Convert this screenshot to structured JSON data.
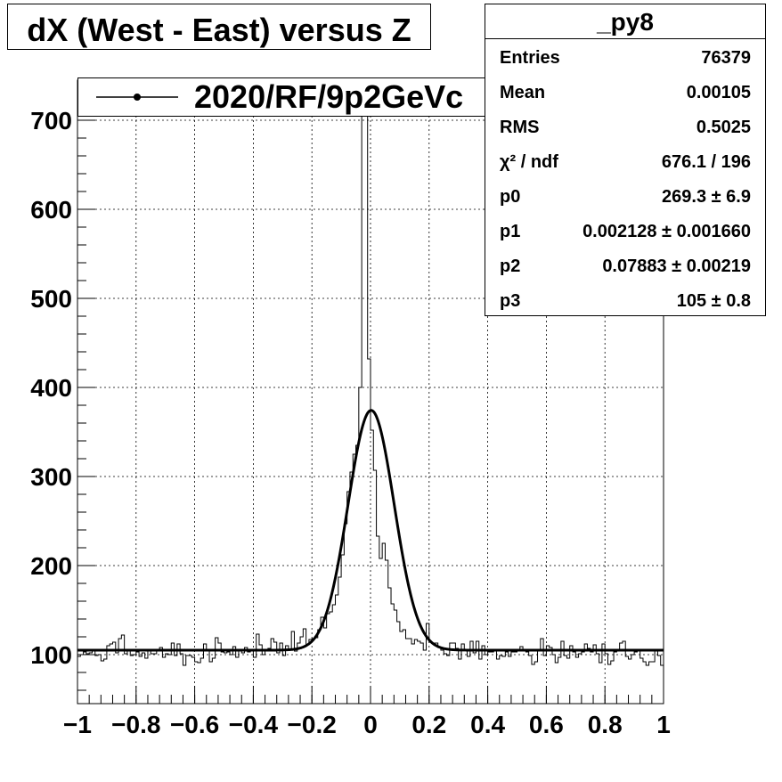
{
  "title": "dX (West - East) versus Z",
  "legend": {
    "entry": "2020/RF/9p2GeVc"
  },
  "stats": {
    "name": "_py8",
    "rows": [
      {
        "key": "Entries",
        "value": "76379"
      },
      {
        "key": "Mean",
        "value": "0.00105"
      },
      {
        "key": "RMS",
        "value": "0.5025"
      },
      {
        "key": "χ² / ndf",
        "value": "676.1 / 196"
      },
      {
        "key": "p0",
        "value": "269.3 ± 6.9"
      },
      {
        "key": "p1",
        "value": "0.002128 ± 0.001660"
      },
      {
        "key": "p2",
        "value": "0.07883 ± 0.00219"
      },
      {
        "key": "p3",
        "value": "105 ± 0.8"
      }
    ]
  },
  "chart_data": {
    "type": "line",
    "title": "dX (West - East) versus Z",
    "xlabel": "",
    "ylabel": "",
    "xlim": [
      -1,
      1
    ],
    "ylim": [
      45,
      745
    ],
    "grid": true,
    "legend_position": "top-left",
    "x_ticks": [
      "−1",
      "−0.8",
      "−0.6",
      "−0.4",
      "−0.2",
      "0",
      "0.2",
      "0.4",
      "0.6",
      "0.8",
      "1"
    ],
    "y_ticks": [
      "100",
      "200",
      "300",
      "400",
      "500",
      "600",
      "700"
    ],
    "series": [
      {
        "name": "2020/RF/9p2GeVc",
        "style": "histogram",
        "bin_range": [
          -1,
          1
        ],
        "values": [
          98,
          100,
          103,
          101,
          102,
          104,
          99,
          100,
          93,
          95,
          110,
          112,
          114,
          102,
          118,
          122,
          101,
          106,
          99,
          100,
          103,
          98,
          102,
          96,
          105,
          101,
          101,
          104,
          108,
          97,
          101,
          100,
          113,
          99,
          112,
          101,
          88,
          99,
          99,
          97,
          92,
          91,
          96,
          112,
          105,
          92,
          96,
          119,
          113,
          103,
          102,
          103,
          100,
          109,
          97,
          104,
          102,
          108,
          103,
          104,
          97,
          123,
          111,
          100,
          104,
          107,
          118,
          114,
          102,
          113,
          99,
          110,
          106,
          126,
          104,
          113,
          120,
          129,
          111,
          117,
          118,
          119,
          128,
          142,
          130,
          146,
          148,
          156,
          167,
          187,
          212,
          247,
          283,
          305,
          325,
          335,
          400,
          713,
          760,
          432,
          352,
          307,
          233,
          208,
          225,
          206,
          175,
          157,
          150,
          137,
          126,
          128,
          118,
          118,
          112,
          117,
          115,
          113,
          105,
          135,
          114,
          113,
          113,
          108,
          105,
          101,
          99,
          113,
          113,
          107,
          95,
          112,
          106,
          98,
          115,
          102,
          115,
          95,
          110,
          100,
          103,
          103,
          106,
          95,
          99,
          98,
          103,
          98,
          103,
          103,
          104,
          109,
          104,
          103,
          99,
          89,
          92,
          106,
          118,
          99,
          110,
          108,
          100,
          91,
          97,
          115,
          99,
          96,
          110,
          103,
          97,
          101,
          103,
          112,
          107,
          103,
          111,
          101,
          91,
          112,
          101,
          89,
          93,
          103,
          104,
          113,
          115,
          98,
          95,
          100,
          103,
          106,
          96,
          92,
          88,
          92,
          92,
          106,
          99,
          88
        ]
      },
      {
        "name": "fit",
        "style": "gaussian",
        "function": "p0*exp(-0.5*((x-p1)/p2)^2) + p3",
        "params": {
          "p0": 269.3,
          "p1": 0.002128,
          "p2": 0.07883,
          "p3": 105
        }
      }
    ],
    "annotations": []
  },
  "colors": {
    "line": "#000000",
    "grid": "#000000",
    "background": "#ffffff"
  }
}
